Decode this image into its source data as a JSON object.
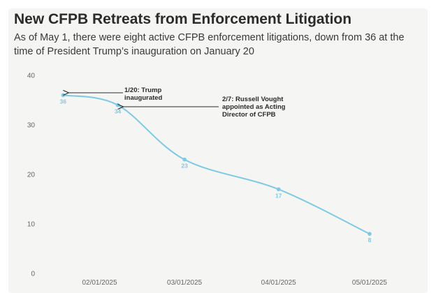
{
  "chart_data": {
    "type": "line",
    "title": "New CFPB Retreats from Enforcement Litigation",
    "subtitle": "As of May 1, there were eight active CFPB enforcement litigations, down from 36 at the time of President Trump’s inauguration on January 20",
    "xlabel": "",
    "ylabel": "",
    "ylim": [
      0,
      40
    ],
    "yticks": [
      0,
      10,
      20,
      30,
      40
    ],
    "xticks": [
      "02/01/2025",
      "03/01/2025",
      "04/01/2025",
      "05/01/2025"
    ],
    "xlim": [
      "2025-01-13",
      "2025-05-07"
    ],
    "grid": false,
    "series": [
      {
        "color": "#7ec9e3",
        "points": [
          {
            "x": "2025-01-20",
            "y": 36,
            "label": "36"
          },
          {
            "x": "2025-02-07",
            "y": 34,
            "label": "34"
          },
          {
            "x": "2025-03-01",
            "y": 23,
            "label": "23"
          },
          {
            "x": "2025-04-01",
            "y": 17,
            "label": "17"
          },
          {
            "x": "2025-05-01",
            "y": 8,
            "label": "8"
          }
        ]
      }
    ],
    "annotations": [
      {
        "x": "2025-01-20",
        "y": 36,
        "lines": [
          "1/20: Trump",
          "inaugurated"
        ]
      },
      {
        "x": "2025-02-07",
        "y": 34,
        "lines": [
          "2/7: Russell Vought",
          "appointed as Acting",
          "Director of CFPB"
        ]
      }
    ]
  }
}
